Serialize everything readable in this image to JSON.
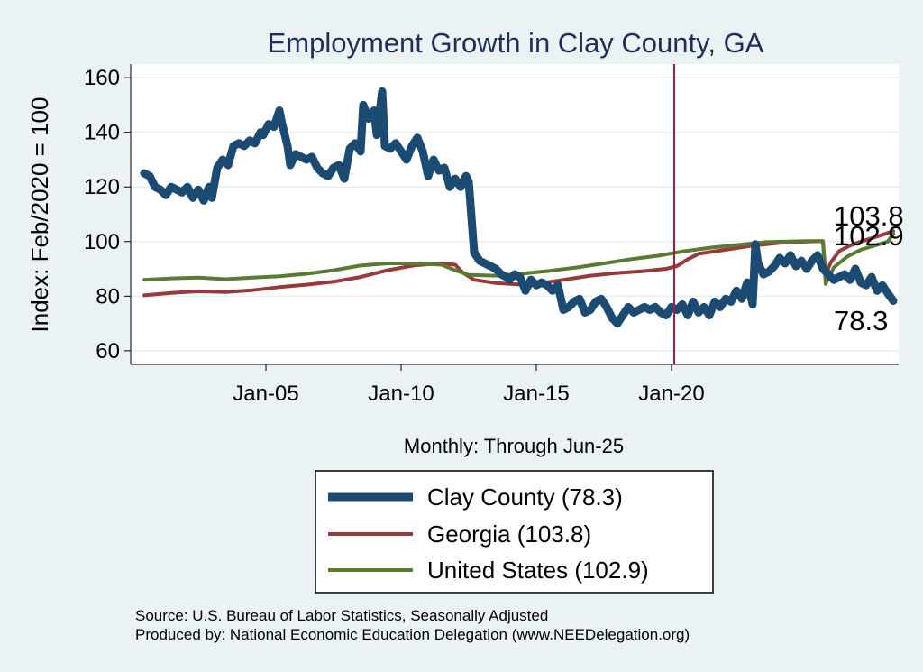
{
  "chart_data": {
    "type": "line",
    "title": "Employment Growth in Clay  County, GA",
    "ylabel": "Index: Feb/2020 = 100",
    "xlabel": "Monthly: Through Jun-25",
    "ylim": [
      55,
      165
    ],
    "xlim": [
      2000.0,
      2028.4
    ],
    "yticks": [
      60,
      80,
      100,
      120,
      140,
      160
    ],
    "xticks": [
      {
        "value": 2005.0,
        "label": "Jan-05"
      },
      {
        "value": 2010.0,
        "label": "Jan-10"
      },
      {
        "value": 2015.0,
        "label": "Jan-15"
      },
      {
        "value": 2020.0,
        "label": "Jan-20"
      }
    ],
    "reference_line": {
      "x": 2020.1,
      "color": "#a01d3c"
    },
    "series": [
      {
        "name": "Clay  County",
        "legend_label": "Clay  County (78.3)",
        "color": "#1b4a72",
        "stroke": 9,
        "end_label": "78.3",
        "end_value": 78.3,
        "points": [
          [
            2000.5,
            125
          ],
          [
            2000.7,
            124
          ],
          [
            2000.9,
            120
          ],
          [
            2001.1,
            119
          ],
          [
            2001.3,
            117
          ],
          [
            2001.5,
            120
          ],
          [
            2001.7,
            119
          ],
          [
            2001.9,
            118
          ],
          [
            2002.1,
            120
          ],
          [
            2002.3,
            116
          ],
          [
            2002.5,
            119
          ],
          [
            2002.7,
            115
          ],
          [
            2002.9,
            120
          ],
          [
            2003.0,
            116
          ],
          [
            2003.2,
            127
          ],
          [
            2003.4,
            130
          ],
          [
            2003.6,
            128
          ],
          [
            2003.8,
            135
          ],
          [
            2004.0,
            136
          ],
          [
            2004.2,
            135
          ],
          [
            2004.4,
            137
          ],
          [
            2004.6,
            136
          ],
          [
            2004.8,
            140
          ],
          [
            2004.9,
            139
          ],
          [
            2005.1,
            143
          ],
          [
            2005.3,
            142
          ],
          [
            2005.5,
            148
          ],
          [
            2005.6,
            143
          ],
          [
            2005.8,
            135
          ],
          [
            2005.9,
            128
          ],
          [
            2006.1,
            132
          ],
          [
            2006.3,
            131
          ],
          [
            2006.5,
            130
          ],
          [
            2006.7,
            131
          ],
          [
            2006.9,
            127
          ],
          [
            2007.1,
            125
          ],
          [
            2007.3,
            124
          ],
          [
            2007.5,
            127
          ],
          [
            2007.7,
            128
          ],
          [
            2007.9,
            123
          ],
          [
            2008.1,
            134
          ],
          [
            2008.3,
            136
          ],
          [
            2008.5,
            133
          ],
          [
            2008.6,
            150
          ],
          [
            2008.8,
            145
          ],
          [
            2009.0,
            148
          ],
          [
            2009.1,
            139
          ],
          [
            2009.3,
            155
          ],
          [
            2009.4,
            135
          ],
          [
            2009.6,
            134
          ],
          [
            2009.8,
            136
          ],
          [
            2010.0,
            133
          ],
          [
            2010.2,
            130
          ],
          [
            2010.4,
            135
          ],
          [
            2010.6,
            138
          ],
          [
            2010.8,
            133
          ],
          [
            2011.0,
            124
          ],
          [
            2011.2,
            130
          ],
          [
            2011.4,
            126
          ],
          [
            2011.6,
            127
          ],
          [
            2011.8,
            120
          ],
          [
            2012.0,
            123
          ],
          [
            2012.2,
            120
          ],
          [
            2012.4,
            124
          ],
          [
            2012.5,
            122
          ],
          [
            2012.7,
            96
          ],
          [
            2012.9,
            93
          ],
          [
            2013.1,
            92
          ],
          [
            2013.3,
            91
          ],
          [
            2013.5,
            90
          ],
          [
            2013.7,
            88
          ],
          [
            2013.9,
            87
          ],
          [
            2014.0,
            86
          ],
          [
            2014.2,
            88
          ],
          [
            2014.4,
            87
          ],
          [
            2014.6,
            82
          ],
          [
            2014.8,
            86
          ],
          [
            2015.0,
            84
          ],
          [
            2015.2,
            85
          ],
          [
            2015.4,
            84
          ],
          [
            2015.6,
            82
          ],
          [
            2015.8,
            84
          ],
          [
            2016.0,
            75
          ],
          [
            2016.2,
            76
          ],
          [
            2016.4,
            78
          ],
          [
            2016.6,
            79
          ],
          [
            2016.8,
            74
          ],
          [
            2017.0,
            75
          ],
          [
            2017.2,
            78
          ],
          [
            2017.4,
            79
          ],
          [
            2017.6,
            76
          ],
          [
            2017.8,
            72
          ],
          [
            2018.0,
            70
          ],
          [
            2018.2,
            73
          ],
          [
            2018.4,
            76
          ],
          [
            2018.6,
            74
          ],
          [
            2018.8,
            75
          ],
          [
            2019.0,
            76
          ],
          [
            2019.2,
            75
          ],
          [
            2019.4,
            76
          ],
          [
            2019.6,
            74
          ],
          [
            2019.8,
            73
          ],
          [
            2020.0,
            76
          ],
          [
            2020.2,
            75
          ],
          [
            2020.4,
            77
          ],
          [
            2020.6,
            73
          ],
          [
            2020.8,
            78
          ],
          [
            2021.0,
            74
          ],
          [
            2021.2,
            76
          ],
          [
            2021.4,
            73
          ],
          [
            2021.6,
            78
          ],
          [
            2021.8,
            76
          ],
          [
            2022.0,
            79
          ],
          [
            2022.2,
            78
          ],
          [
            2022.4,
            82
          ],
          [
            2022.6,
            79
          ],
          [
            2022.8,
            85
          ],
          [
            2023.0,
            77
          ],
          [
            2023.1,
            99
          ],
          [
            2023.2,
            92
          ],
          [
            2023.4,
            88
          ],
          [
            2023.6,
            89
          ],
          [
            2023.8,
            91
          ],
          [
            2024.0,
            94
          ],
          [
            2024.2,
            92
          ],
          [
            2024.4,
            95
          ],
          [
            2024.6,
            91
          ],
          [
            2024.8,
            93
          ],
          [
            2025.0,
            90
          ],
          [
            2025.2,
            93
          ],
          [
            2025.4,
            95
          ],
          [
            2025.6,
            90
          ],
          [
            2025.8,
            88
          ],
          [
            2026.0,
            86
          ],
          [
            2026.2,
            87
          ],
          [
            2026.4,
            88
          ],
          [
            2026.6,
            86
          ],
          [
            2026.8,
            90
          ],
          [
            2027.0,
            85
          ],
          [
            2027.2,
            84
          ],
          [
            2027.4,
            87
          ],
          [
            2027.6,
            82
          ],
          [
            2027.8,
            84
          ],
          [
            2028.0,
            81
          ],
          [
            2028.2,
            78.3
          ]
        ]
      },
      {
        "name": "Georgia",
        "legend_label": "Georgia (103.8)",
        "color": "#963a3c",
        "stroke": 4,
        "end_label": "103.8",
        "end_value": 103.8,
        "points": [
          [
            2000.5,
            80.3
          ],
          [
            2001.5,
            81.2
          ],
          [
            2002.5,
            81.8
          ],
          [
            2003.5,
            81.5
          ],
          [
            2004.5,
            82.2
          ],
          [
            2005.5,
            83.3
          ],
          [
            2006.5,
            84.2
          ],
          [
            2007.5,
            85.3
          ],
          [
            2008.5,
            87.0
          ],
          [
            2009.5,
            89.5
          ],
          [
            2010.5,
            91.3
          ],
          [
            2011.5,
            92.0
          ],
          [
            2012.0,
            91.5
          ],
          [
            2012.3,
            88.5
          ],
          [
            2012.7,
            86.0
          ],
          [
            2013.5,
            84.8
          ],
          [
            2014.5,
            84.2
          ],
          [
            2015.0,
            84.5
          ],
          [
            2016.0,
            86.0
          ],
          [
            2017.0,
            87.5
          ],
          [
            2018.0,
            88.5
          ],
          [
            2019.0,
            89.2
          ],
          [
            2019.8,
            90.0
          ],
          [
            2020.2,
            91.0
          ],
          [
            2020.6,
            93.5
          ],
          [
            2021.0,
            95.5
          ],
          [
            2022.0,
            97.0
          ],
          [
            2023.0,
            98.5
          ],
          [
            2024.0,
            99.5
          ],
          [
            2025.0,
            100.0
          ],
          [
            2025.6,
            100.2
          ],
          [
            2025.7,
            88.0
          ],
          [
            2025.9,
            92.5
          ],
          [
            2026.2,
            96.5
          ],
          [
            2026.6,
            98.5
          ],
          [
            2027.0,
            100.0
          ],
          [
            2027.5,
            101.5
          ],
          [
            2028.2,
            103.8
          ]
        ]
      },
      {
        "name": "United States",
        "legend_label": "United States (102.9)",
        "color": "#5a7a32",
        "stroke": 4,
        "end_label": "102.9",
        "end_value": 102.9,
        "points": [
          [
            2000.5,
            86.0
          ],
          [
            2001.5,
            86.5
          ],
          [
            2002.5,
            86.8
          ],
          [
            2003.5,
            86.2
          ],
          [
            2004.5,
            86.8
          ],
          [
            2005.5,
            87.3
          ],
          [
            2006.5,
            88.2
          ],
          [
            2007.5,
            89.5
          ],
          [
            2008.5,
            91.2
          ],
          [
            2009.5,
            92.0
          ],
          [
            2010.5,
            92.0
          ],
          [
            2011.5,
            91.5
          ],
          [
            2012.0,
            89.5
          ],
          [
            2012.5,
            87.8
          ],
          [
            2013.5,
            87.5
          ],
          [
            2014.5,
            88.3
          ],
          [
            2015.5,
            89.3
          ],
          [
            2016.5,
            90.5
          ],
          [
            2017.5,
            92.0
          ],
          [
            2018.5,
            93.5
          ],
          [
            2019.5,
            94.8
          ],
          [
            2020.5,
            96.5
          ],
          [
            2021.5,
            97.8
          ],
          [
            2022.5,
            98.8
          ],
          [
            2023.5,
            99.8
          ],
          [
            2025.0,
            100.2
          ],
          [
            2025.6,
            100.2
          ],
          [
            2025.7,
            84.5
          ],
          [
            2026.0,
            90.5
          ],
          [
            2026.5,
            94.5
          ],
          [
            2027.0,
            97.0
          ],
          [
            2027.5,
            98.5
          ],
          [
            2028.0,
            100.0
          ],
          [
            2028.2,
            102.9
          ]
        ]
      }
    ]
  },
  "source_line": "Source: U.S. Bureau of Labor Statistics, Seasonally Adjusted",
  "producer_line": "Produced by: National Economic Education Delegation (www.NEEDelegation.org)"
}
